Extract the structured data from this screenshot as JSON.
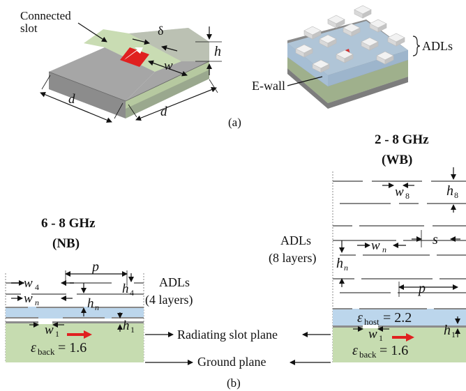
{
  "part_a": {
    "caption": "(a)",
    "connected_slot_line1": "Connected",
    "connected_slot_line2": "slot",
    "delta": "δ",
    "h": "h",
    "w": "w",
    "d_left": "d",
    "d_right": "d",
    "adls": "ADLs",
    "ewall": "E-wall"
  },
  "part_b": {
    "caption": "(b)",
    "nb": {
      "title_line1": "6 - 8 GHz",
      "title_line2": "(NB)",
      "adls_line1": "ADLs",
      "adls_line2": "(4 layers)",
      "p": "p",
      "w4": "w",
      "w4_sub": "4",
      "h4": "h",
      "h4_sub": "4",
      "wn": "w",
      "wn_sub": "n",
      "hn": "h",
      "hn_sub": "n",
      "w1": "w",
      "w1_sub": "1",
      "h1": "h",
      "h1_sub": "1",
      "eps_back": "ε",
      "eps_back_sub": "back",
      "eps_back_val": " = 1.6"
    },
    "wb": {
      "title_line1": "2 - 8 GHz",
      "title_line2": "(WB)",
      "adls_line1": "ADLs",
      "adls_line2": "(8 layers)",
      "w8": "w",
      "w8_sub": "8",
      "h8": "h",
      "h8_sub": "8",
      "s": "s",
      "wn": "w",
      "wn_sub": "n",
      "hn": "h",
      "hn_sub": "n",
      "p": "p",
      "eps_host": "ε",
      "eps_host_sub": "host",
      "eps_host_val": " = 2.2",
      "w1": "w",
      "w1_sub": "1",
      "h1": "h",
      "h1_sub": "1",
      "eps_back": "ε",
      "eps_back_sub": "back",
      "eps_back_val": " = 1.6"
    },
    "radiating_slot_plane": "Radiating slot plane",
    "ground_plane": "Ground plane"
  }
}
